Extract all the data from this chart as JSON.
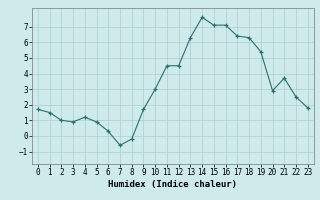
{
  "x": [
    0,
    1,
    2,
    3,
    4,
    5,
    6,
    7,
    8,
    9,
    10,
    11,
    12,
    13,
    14,
    15,
    16,
    17,
    18,
    19,
    20,
    21,
    22,
    23
  ],
  "y": [
    1.7,
    1.5,
    1.0,
    0.9,
    1.2,
    0.9,
    0.3,
    -0.6,
    -0.2,
    1.7,
    3.0,
    4.5,
    4.5,
    6.3,
    7.6,
    7.1,
    7.1,
    6.4,
    6.3,
    5.4,
    2.9,
    3.7,
    2.5,
    1.8
  ],
  "line_color": "#2d6e6e",
  "marker": "+",
  "marker_color": "#2d6e6e",
  "bg_color": "#ceeaea",
  "grid_color": "#aacece",
  "xlabel": "Humidex (Indice chaleur)",
  "xlim": [
    -0.5,
    23.5
  ],
  "ylim": [
    -1.8,
    8.2
  ],
  "yticks": [
    -1,
    0,
    1,
    2,
    3,
    4,
    5,
    6,
    7
  ],
  "xticks": [
    0,
    1,
    2,
    3,
    4,
    5,
    6,
    7,
    8,
    9,
    10,
    11,
    12,
    13,
    14,
    15,
    16,
    17,
    18,
    19,
    20,
    21,
    22,
    23
  ],
  "tick_fontsize": 5.5,
  "xlabel_fontsize": 6.5
}
